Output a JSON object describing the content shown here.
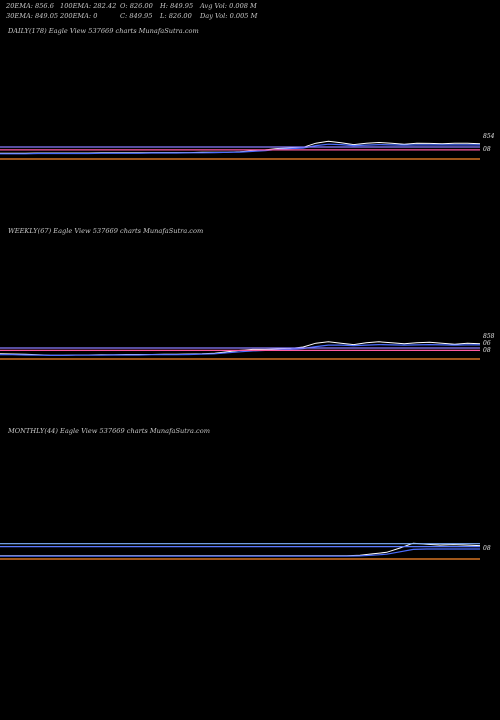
{
  "header": {
    "col1": [
      "20EMA: 856.6",
      "30EMA: 849.05"
    ],
    "col2": [
      "100EMA: 282.42",
      "200EMA: 0"
    ],
    "col3": [
      "O: 826.00",
      "C: 849.95"
    ],
    "col4": [
      "H: 849.95",
      "L: 826.00"
    ],
    "col5": [
      "Avg Vol: 0.008 M",
      "Day Vol: 0.005 M"
    ]
  },
  "chart_data": [
    {
      "type": "line",
      "title": "DAILY(178) Eagle   View  537669 charts MunafaSutra.com",
      "tick_labels": [
        "854",
        "08"
      ],
      "series": [
        {
          "color": "#ffffff",
          "values": [
            0.72,
            0.72,
            0.72,
            0.71,
            0.71,
            0.71,
            0.71,
            0.71,
            0.7,
            0.7,
            0.7,
            0.7,
            0.69,
            0.69,
            0.69,
            0.69,
            0.68,
            0.68,
            0.68,
            0.66,
            0.62,
            0.58,
            0.52,
            0.5,
            0.47,
            0.3,
            0.22,
            0.28,
            0.36,
            0.3,
            0.27,
            0.3,
            0.34,
            0.3,
            0.31,
            0.32,
            0.3,
            0.3,
            0.32
          ]
        },
        {
          "color": "#4a6cff",
          "values": [
            0.74,
            0.74,
            0.74,
            0.73,
            0.73,
            0.73,
            0.73,
            0.73,
            0.72,
            0.72,
            0.72,
            0.72,
            0.71,
            0.71,
            0.71,
            0.7,
            0.7,
            0.69,
            0.68,
            0.67,
            0.64,
            0.61,
            0.56,
            0.53,
            0.5,
            0.4,
            0.34,
            0.36,
            0.4,
            0.38,
            0.36,
            0.37,
            0.38,
            0.37,
            0.37,
            0.37,
            0.37,
            0.37,
            0.37
          ]
        },
        {
          "color": "#ff5aa0",
          "values": [
            0.58,
            0.58,
            0.58,
            0.58,
            0.58,
            0.58,
            0.58,
            0.58,
            0.58,
            0.58,
            0.58,
            0.58,
            0.58,
            0.58,
            0.58,
            0.58,
            0.58,
            0.58,
            0.58,
            0.58,
            0.58,
            0.58,
            0.58,
            0.58,
            0.58,
            0.58,
            0.58,
            0.58,
            0.58,
            0.58,
            0.58,
            0.58,
            0.58,
            0.58,
            0.58,
            0.58,
            0.58,
            0.58,
            0.58
          ]
        },
        {
          "color": "#8a7cff",
          "values": [
            0.46,
            0.46,
            0.46,
            0.46,
            0.46,
            0.46,
            0.46,
            0.46,
            0.46,
            0.46,
            0.46,
            0.46,
            0.46,
            0.46,
            0.46,
            0.46,
            0.46,
            0.46,
            0.46,
            0.46,
            0.46,
            0.46,
            0.46,
            0.46,
            0.46,
            0.46,
            0.46,
            0.46,
            0.46,
            0.46,
            0.46,
            0.46,
            0.46,
            0.46,
            0.46,
            0.46,
            0.46,
            0.46,
            0.46
          ]
        },
        {
          "color": "#ff8a2a",
          "values": [
            0.96,
            0.96,
            0.96,
            0.96,
            0.96,
            0.96,
            0.96,
            0.96,
            0.96,
            0.96,
            0.96,
            0.96,
            0.96,
            0.96,
            0.96,
            0.96,
            0.96,
            0.96,
            0.96,
            0.96,
            0.96,
            0.96,
            0.96,
            0.96,
            0.96,
            0.96,
            0.96,
            0.96,
            0.96,
            0.96,
            0.96,
            0.96,
            0.96,
            0.96,
            0.96,
            0.96,
            0.96,
            0.96,
            0.96
          ]
        }
      ]
    },
    {
      "type": "line",
      "title": "WEEKLY(67) Eagle   View  537669 charts MunafaSutra.com",
      "tick_labels": [
        "858",
        "06",
        "08"
      ],
      "series": [
        {
          "color": "#ffffff",
          "values": [
            0.74,
            0.75,
            0.76,
            0.78,
            0.8,
            0.8,
            0.79,
            0.79,
            0.78,
            0.78,
            0.77,
            0.77,
            0.77,
            0.76,
            0.76,
            0.75,
            0.74,
            0.72,
            0.66,
            0.6,
            0.56,
            0.56,
            0.54,
            0.52,
            0.46,
            0.3,
            0.24,
            0.3,
            0.36,
            0.28,
            0.24,
            0.28,
            0.32,
            0.28,
            0.26,
            0.3,
            0.34,
            0.3,
            0.32
          ]
        },
        {
          "color": "#4a6cff",
          "values": [
            0.78,
            0.78,
            0.79,
            0.8,
            0.81,
            0.81,
            0.8,
            0.8,
            0.8,
            0.79,
            0.79,
            0.79,
            0.78,
            0.78,
            0.78,
            0.77,
            0.76,
            0.74,
            0.7,
            0.66,
            0.62,
            0.6,
            0.58,
            0.56,
            0.52,
            0.44,
            0.38,
            0.38,
            0.4,
            0.38,
            0.36,
            0.37,
            0.38,
            0.37,
            0.36,
            0.37,
            0.38,
            0.37,
            0.37
          ]
        },
        {
          "color": "#ff5aa0",
          "values": [
            0.6,
            0.6,
            0.6,
            0.6,
            0.6,
            0.6,
            0.6,
            0.6,
            0.6,
            0.6,
            0.6,
            0.6,
            0.6,
            0.6,
            0.6,
            0.6,
            0.6,
            0.6,
            0.6,
            0.6,
            0.6,
            0.6,
            0.6,
            0.6,
            0.6,
            0.6,
            0.6,
            0.6,
            0.6,
            0.6,
            0.6,
            0.6,
            0.6,
            0.6,
            0.6,
            0.6,
            0.6,
            0.6,
            0.6
          ]
        },
        {
          "color": "#8a7cff",
          "values": [
            0.5,
            0.5,
            0.5,
            0.5,
            0.5,
            0.5,
            0.5,
            0.5,
            0.5,
            0.5,
            0.5,
            0.5,
            0.5,
            0.5,
            0.5,
            0.5,
            0.5,
            0.5,
            0.5,
            0.5,
            0.5,
            0.5,
            0.5,
            0.5,
            0.5,
            0.5,
            0.5,
            0.5,
            0.5,
            0.5,
            0.5,
            0.5,
            0.5,
            0.5,
            0.5,
            0.5,
            0.5,
            0.5,
            0.5
          ]
        },
        {
          "color": "#ff8a2a",
          "values": [
            0.96,
            0.96,
            0.96,
            0.96,
            0.96,
            0.96,
            0.96,
            0.96,
            0.96,
            0.96,
            0.96,
            0.96,
            0.96,
            0.96,
            0.96,
            0.96,
            0.96,
            0.96,
            0.96,
            0.96,
            0.96,
            0.96,
            0.96,
            0.96,
            0.96,
            0.96,
            0.96,
            0.96,
            0.96,
            0.96,
            0.96,
            0.96,
            0.96,
            0.96,
            0.96,
            0.96,
            0.96,
            0.96,
            0.96
          ]
        }
      ]
    },
    {
      "type": "line",
      "title": "MONTHLY(44) Eagle   View  537669 charts MunafaSutra.com",
      "tick_labels": [
        "08"
      ],
      "series": [
        {
          "color": "#ffffff",
          "values": [
            0.82,
            0.82,
            0.82,
            0.82,
            0.82,
            0.82,
            0.82,
            0.82,
            0.82,
            0.82,
            0.82,
            0.82,
            0.82,
            0.82,
            0.82,
            0.82,
            0.82,
            0.82,
            0.82,
            0.82,
            0.82,
            0.82,
            0.82,
            0.82,
            0.82,
            0.82,
            0.82,
            0.8,
            0.74,
            0.68,
            0.5,
            0.3,
            0.34,
            0.38,
            0.36,
            0.38,
            0.4
          ]
        },
        {
          "color": "#4a6cff",
          "values": [
            0.84,
            0.84,
            0.84,
            0.84,
            0.84,
            0.84,
            0.84,
            0.84,
            0.84,
            0.84,
            0.84,
            0.84,
            0.84,
            0.84,
            0.84,
            0.84,
            0.84,
            0.84,
            0.84,
            0.84,
            0.84,
            0.84,
            0.84,
            0.84,
            0.84,
            0.84,
            0.84,
            0.83,
            0.8,
            0.76,
            0.66,
            0.56,
            0.54,
            0.54,
            0.54,
            0.54,
            0.54
          ]
        },
        {
          "color": "#7fb2ff",
          "values": [
            0.32,
            0.32,
            0.32,
            0.32,
            0.32,
            0.32,
            0.32,
            0.32,
            0.32,
            0.32,
            0.32,
            0.32,
            0.32,
            0.32,
            0.32,
            0.32,
            0.32,
            0.32,
            0.32,
            0.32,
            0.32,
            0.32,
            0.32,
            0.32,
            0.32,
            0.32,
            0.32,
            0.32,
            0.32,
            0.32,
            0.32,
            0.32,
            0.32,
            0.32,
            0.32,
            0.32,
            0.32
          ]
        },
        {
          "color": "#5a78ff",
          "values": [
            0.44,
            0.44,
            0.44,
            0.44,
            0.44,
            0.44,
            0.44,
            0.44,
            0.44,
            0.44,
            0.44,
            0.44,
            0.44,
            0.44,
            0.44,
            0.44,
            0.44,
            0.44,
            0.44,
            0.44,
            0.44,
            0.44,
            0.44,
            0.44,
            0.44,
            0.44,
            0.44,
            0.44,
            0.44,
            0.44,
            0.44,
            0.44,
            0.44,
            0.44,
            0.44,
            0.44,
            0.44
          ]
        },
        {
          "color": "#ff8a2a",
          "values": [
            0.96,
            0.96,
            0.96,
            0.96,
            0.96,
            0.96,
            0.96,
            0.96,
            0.96,
            0.96,
            0.96,
            0.96,
            0.96,
            0.96,
            0.96,
            0.96,
            0.96,
            0.96,
            0.96,
            0.96,
            0.96,
            0.96,
            0.96,
            0.96,
            0.96,
            0.96,
            0.96,
            0.96,
            0.96,
            0.96,
            0.96,
            0.96,
            0.96,
            0.96,
            0.96,
            0.96,
            0.96
          ]
        }
      ]
    }
  ]
}
